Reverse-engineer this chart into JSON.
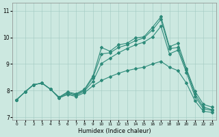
{
  "xlabel": "Humidex (Indice chaleur)",
  "xlim": [
    -0.5,
    23.5
  ],
  "ylim": [
    6.9,
    11.3
  ],
  "yticks": [
    7,
    8,
    9,
    10,
    11
  ],
  "xticks": [
    0,
    1,
    2,
    3,
    4,
    5,
    6,
    7,
    8,
    9,
    10,
    11,
    12,
    13,
    14,
    15,
    16,
    17,
    18,
    19,
    20,
    21,
    22,
    23
  ],
  "bg_color": "#cce8e0",
  "line_color": "#2e8b7a",
  "line1_y": [
    7.65,
    7.95,
    8.22,
    8.28,
    8.05,
    7.75,
    7.95,
    7.88,
    8.05,
    8.55,
    9.62,
    9.48,
    9.72,
    9.78,
    9.98,
    10.02,
    10.38,
    10.78,
    9.65,
    9.78,
    8.82,
    7.98,
    7.48,
    7.38
  ],
  "line2_y": [
    7.65,
    7.95,
    8.22,
    8.28,
    8.05,
    7.75,
    7.92,
    7.85,
    8.02,
    8.48,
    9.38,
    9.42,
    9.62,
    9.72,
    9.88,
    9.98,
    10.28,
    10.68,
    9.58,
    9.62,
    8.78,
    7.88,
    7.38,
    7.28
  ],
  "line3_y": [
    7.65,
    7.95,
    8.22,
    8.28,
    8.05,
    7.72,
    7.88,
    7.82,
    7.98,
    8.35,
    9.02,
    9.22,
    9.42,
    9.58,
    9.72,
    9.82,
    10.02,
    10.42,
    9.38,
    9.52,
    8.68,
    7.78,
    7.32,
    7.25
  ],
  "line4_y": [
    7.65,
    7.95,
    8.22,
    8.28,
    8.05,
    7.72,
    7.85,
    7.78,
    7.92,
    8.18,
    8.38,
    8.52,
    8.65,
    8.75,
    8.82,
    8.88,
    9.0,
    9.1,
    8.88,
    8.75,
    8.28,
    7.62,
    7.22,
    7.18
  ]
}
